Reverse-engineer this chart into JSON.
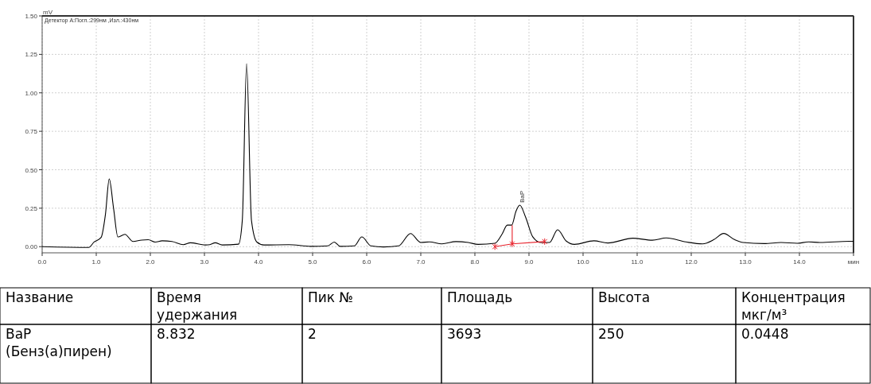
{
  "chart_data": [
    {
      "type": "line",
      "ylabel": "mV",
      "annotations": [
        "Детектор A:Погл.:299нм ,Изл.:430нм",
        {
          "text": "BaP",
          "x": 8.83,
          "y": 0.27
        }
      ],
      "xlim": [
        0,
        15
      ],
      "ylim": [
        -0.04,
        1.5
      ],
      "xticks": [
        {
          "value": 0,
          "label": "0.0"
        },
        {
          "value": 1,
          "label": "1.0"
        },
        {
          "value": 2,
          "label": "2.0"
        },
        {
          "value": 3,
          "label": "3.0"
        },
        {
          "value": 4,
          "label": "4.0"
        },
        {
          "value": 5,
          "label": "5.0"
        },
        {
          "value": 6,
          "label": "6.0"
        },
        {
          "value": 7,
          "label": "7.0"
        },
        {
          "value": 8,
          "label": "8.0"
        },
        {
          "value": 9,
          "label": "9.0"
        },
        {
          "value": 10,
          "label": "10.0"
        },
        {
          "value": 11,
          "label": "11.0"
        },
        {
          "value": 12,
          "label": "12.0"
        },
        {
          "value": 13,
          "label": "13.0"
        },
        {
          "value": 14,
          "label": "14.0"
        },
        {
          "value": 15,
          "label": "мин"
        }
      ],
      "yticks": [
        {
          "value": 0,
          "label": "0.00"
        },
        0.25,
        {
          "value": 0.5,
          "label": "0.50"
        },
        0.75,
        {
          "value": 1,
          "label": "1.00"
        },
        1.25,
        {
          "value": 1.5,
          "label": "1.50"
        }
      ],
      "grid": true,
      "series": [
        {
          "color": "#000000",
          "marker": "none",
          "x": [
            0,
            0.86,
            0.96,
            1.09,
            1.17,
            1.24,
            1.32,
            1.4,
            1.53,
            1.68,
            1.84,
            1.96,
            2.09,
            2.22,
            2.4,
            2.61,
            2.74,
            3.02,
            3.1,
            3.2,
            3.33,
            3.63,
            3.7,
            3.78,
            3.87,
            3.97,
            4.1,
            4.56,
            4.97,
            5.28,
            5.4,
            5.51,
            5.77,
            5.91,
            6.08,
            6.31,
            6.59,
            6.81,
            7.0,
            7.16,
            7.39,
            7.65,
            7.88,
            8.06,
            8.37,
            8.5,
            8.6,
            8.68,
            8.76,
            8.83,
            8.94,
            9.07,
            9.22,
            9.38,
            9.53,
            9.69,
            9.84,
            10.2,
            10.46,
            10.92,
            11.28,
            11.54,
            11.9,
            12.21,
            12.42,
            12.6,
            12.8,
            12.96,
            13.35,
            13.66,
            13.96,
            14.17,
            14.38,
            14.92,
            15
          ],
          "values": [
            0,
            -0.005,
            0.03,
            0.06,
            0.21,
            0.44,
            0.25,
            0.063,
            0.08,
            0.034,
            0.043,
            0.045,
            0.03,
            0.038,
            0.034,
            0.013,
            0.025,
            0.011,
            0.013,
            0.025,
            0.011,
            0.016,
            0.17,
            1.19,
            0.17,
            0.03,
            0.011,
            0.013,
            0.002,
            0.005,
            0.03,
            0.002,
            0.005,
            0.063,
            0.005,
            -0.002,
            0.005,
            0.085,
            0.027,
            0.031,
            0.018,
            0.033,
            0.027,
            0.015,
            0.022,
            0.08,
            0.14,
            0.14,
            0.23,
            0.27,
            0.19,
            0.064,
            0.027,
            0.027,
            0.11,
            0.036,
            0.015,
            0.038,
            0.024,
            0.055,
            0.042,
            0.057,
            0.031,
            0.018,
            0.046,
            0.086,
            0.046,
            0.027,
            0.02,
            0.027,
            0.022,
            0.031,
            0.027,
            0.035,
            0.035
          ]
        },
        {
          "color": "#e8202a",
          "marker": "cross",
          "x": [
            8.37,
            8.69,
            9.29
          ],
          "values": [
            0.0,
            0.018,
            0.033
          ]
        },
        {
          "color": "#e8202a",
          "marker": "none",
          "x": [
            8.69,
            8.69
          ],
          "values": [
            0.018,
            0.14
          ]
        }
      ]
    },
    {
      "type": "other",
      "annotations": [
        "Название",
        "Время\nудержания",
        "Пик №",
        "Площадь",
        "Высота",
        "Концентрация\nмкг/м³",
        "BaP\n(Бенз(а)пирен)",
        "8.832",
        "2",
        "3693",
        "250",
        "0.0448"
      ]
    }
  ]
}
